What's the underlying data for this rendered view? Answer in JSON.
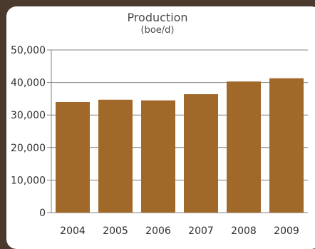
{
  "colors": {
    "background": "#4a3a2e",
    "panel": "#ffffff",
    "bar": "#a0692a",
    "grid": "#808080",
    "text": "#4a4a4a"
  },
  "chart_data": {
    "type": "bar",
    "title": "Production",
    "subtitle": "(boe/d)",
    "categories": [
      "2004",
      "2005",
      "2006",
      "2007",
      "2008",
      "2009"
    ],
    "values": [
      34000,
      34700,
      34500,
      36400,
      40300,
      41300
    ],
    "ylim": [
      0,
      50000
    ],
    "yticks": [
      "0",
      "10,000",
      "20,000",
      "30,000",
      "40,000",
      "50,000"
    ],
    "grid": true,
    "legend": "none"
  }
}
